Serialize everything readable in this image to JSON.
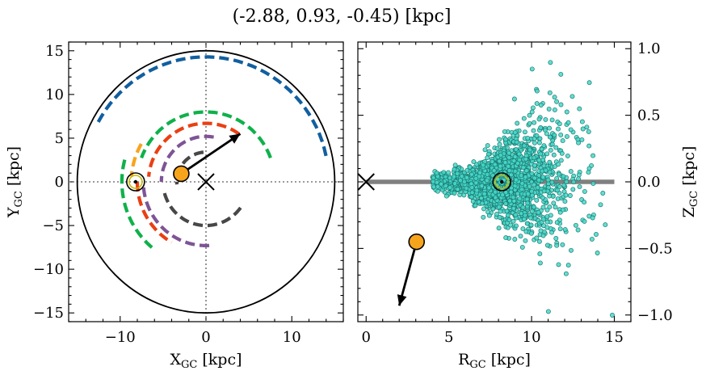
{
  "title": "(-2.88, 0.93, -0.45) [kpc]",
  "chart_data": [
    {
      "type": "scatter",
      "panel": "left",
      "xlabel_main": "X",
      "xlabel_sub": "GC",
      "xlabel_unit": " [kpc]",
      "ylabel_main": "Y",
      "ylabel_sub": "GC",
      "ylabel_unit": " [kpc]",
      "xlim": [
        -16,
        16
      ],
      "ylim": [
        -16,
        16
      ],
      "xticks": [
        -10,
        0,
        10
      ],
      "yticks": [
        -15,
        -10,
        -5,
        0,
        5,
        10,
        15
      ],
      "xtick_labels": [
        "−10",
        "0",
        "10"
      ],
      "ytick_labels": [
        "−15",
        "−10",
        "−5",
        "0",
        "5",
        "10",
        "15"
      ],
      "outer_circle_radius": 15,
      "galactic_center": [
        0,
        0
      ],
      "sun": [
        -8.2,
        0
      ],
      "object": [
        -2.88,
        0.93
      ],
      "velocity_arrow_end": [
        4,
        5.5
      ],
      "spiral_arms": [
        {
          "color": "#115fa0",
          "radius": 14.3,
          "start_deg": 12,
          "end_deg": 152
        },
        {
          "color": "#0fb14a",
          "radius": 8.0,
          "start_deg": 20,
          "end_deg": 160
        },
        {
          "color": "#0fb14a",
          "radius": 9.8,
          "start_deg": 165,
          "end_deg": 230
        },
        {
          "color": "#f7a41d",
          "radius": 8.7,
          "start_deg": 150,
          "end_deg": 176
        },
        {
          "color": "#ea3f12",
          "radius": 6.7,
          "start_deg": 55,
          "end_deg": 175
        },
        {
          "color": "#ea3f12",
          "radius": 8.0,
          "start_deg": 180,
          "end_deg": 240
        },
        {
          "color": "#7e5496",
          "radius": 5.2,
          "start_deg": 80,
          "end_deg": 180
        },
        {
          "color": "#7e5496",
          "radius": 7.3,
          "start_deg": 185,
          "end_deg": 275
        },
        {
          "color": "#474747",
          "radius": 3.4,
          "start_deg": 95,
          "end_deg": 185
        },
        {
          "color": "#474747",
          "radius": 5.0,
          "start_deg": 195,
          "end_deg": 325
        }
      ]
    },
    {
      "type": "scatter",
      "panel": "right",
      "xlabel_main": "R",
      "xlabel_sub": "GC",
      "xlabel_unit": " [kpc]",
      "ylabel_main": "Z",
      "ylabel_sub": "GC",
      "ylabel_unit": " [kpc]",
      "xlim": [
        -0.5,
        16
      ],
      "ylim": [
        -1.05,
        1.05
      ],
      "xticks": [
        0,
        5,
        10,
        15
      ],
      "yticks": [
        -1.0,
        -0.5,
        0.0,
        0.5,
        1.0
      ],
      "xtick_labels": [
        "0",
        "5",
        "10",
        "15"
      ],
      "ytick_labels": [
        "−1.0",
        "−0.5",
        "0.0",
        "0.5",
        "1.0"
      ],
      "disk_line": {
        "x": [
          0,
          15
        ],
        "z": 0,
        "color": "#808080"
      },
      "galactic_center": [
        0,
        0
      ],
      "sun": [
        8.2,
        0
      ],
      "object": [
        3.05,
        -0.45
      ],
      "velocity_arrow_end": [
        2.0,
        -0.93
      ],
      "scatter_color": "#48d8c8",
      "scatter_edge": "#1b7a73",
      "scatter_count": 1800,
      "scatter_center": [
        8.2,
        0.0
      ]
    }
  ]
}
